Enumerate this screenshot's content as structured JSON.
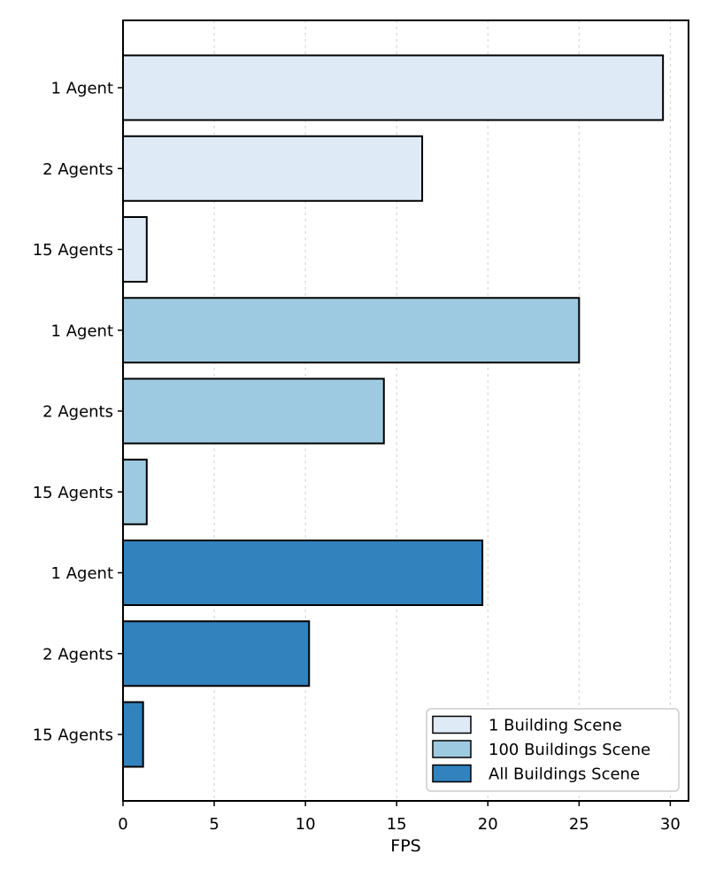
{
  "chart_data": {
    "type": "bar",
    "orientation": "horizontal",
    "title": "",
    "xlabel": "FPS",
    "ylabel": "",
    "xlim": [
      0,
      31
    ],
    "xticks": [
      0,
      5,
      10,
      15,
      20,
      25,
      30
    ],
    "grid": "vertical-dashed",
    "legend_position": "lower right",
    "categories": [
      "1 Agent",
      "2 Agents",
      "15 Agents"
    ],
    "series": [
      {
        "name": "1 Building Scene",
        "color": "#deebf7",
        "values": [
          29.6,
          16.4,
          1.3
        ]
      },
      {
        "name": "100 Buildings Scene",
        "color": "#9ecae1",
        "values": [
          25.0,
          14.3,
          1.3
        ]
      },
      {
        "name": "All Buildings Scene",
        "color": "#3182bd",
        "values": [
          19.7,
          10.2,
          1.1
        ]
      }
    ]
  },
  "colors": {
    "background": "#ffffff",
    "plot_background": "#ffffff",
    "grid": "#d0d0d0",
    "spine": "#000000",
    "bar_edge": "#000000",
    "tick": "#000000",
    "text": "#000000",
    "legend_border": "#cccccc",
    "legend_background": "#ffffff"
  }
}
